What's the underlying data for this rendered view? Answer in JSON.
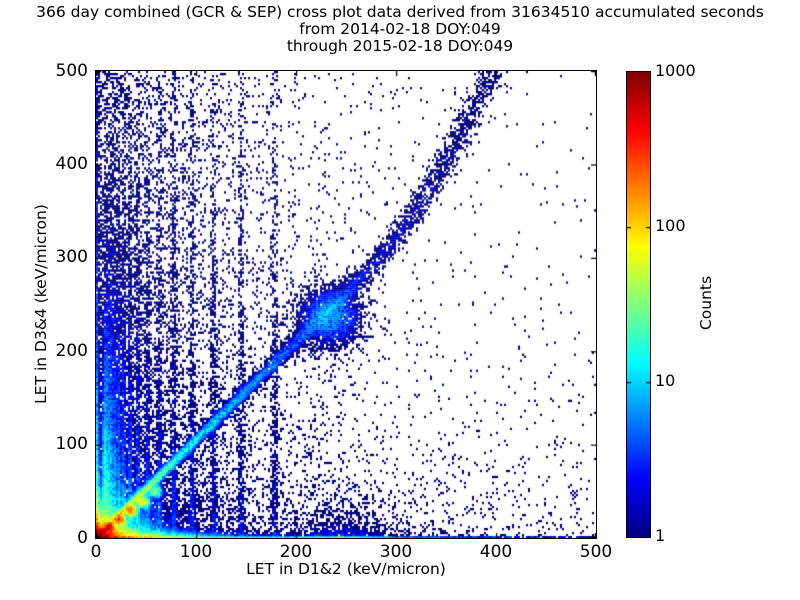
{
  "chart_data": {
    "type": "heatmap",
    "title_lines": [
      "366 day combined (GCR & SEP) cross plot data derived from 31634510 accumulated seconds",
      "from 2014-02-18 DOY:049",
      "through 2015-02-18 DOY:049"
    ],
    "days_combined": 366,
    "source": "GCR & SEP",
    "accumulated_seconds": 31634510,
    "date_range": {
      "from": "2014-02-18 DOY:049",
      "through": "2015-02-18 DOY:049"
    },
    "xlabel": "LET in D1&2 (keV/micron)",
    "ylabel": "LET in D3&4 (keV/micron)",
    "xlim": [
      0,
      500
    ],
    "ylim": [
      0,
      500
    ],
    "xticks": [
      0,
      100,
      200,
      300,
      400,
      500
    ],
    "yticks": [
      0,
      100,
      200,
      300,
      400,
      500
    ],
    "grid": false,
    "background": "#ffffff",
    "colormap": "jet",
    "point_color_min": "#000080",
    "point_color_max": "#800000",
    "colorbar": {
      "label": "Counts",
      "scale": "log",
      "min": 1,
      "max": 1000,
      "ticks": [
        1,
        10,
        100,
        1000
      ]
    },
    "density_model": {
      "seed": 20150218,
      "bins": {
        "cols": 250,
        "rows": 233
      },
      "origin_hotspot": {
        "amp_core": 1400,
        "r_core": 4.5,
        "amp_mid": 120,
        "r_mid": 15,
        "amp_halo": 2.0,
        "r_halo": 45,
        "y_squash": 1.15
      },
      "bottom_band": {
        "amps": [
          900,
          80,
          10,
          1.6
        ],
        "xdecays": [
          22,
          55,
          130,
          500
        ],
        "height": 2.2,
        "height_extra": 2.0,
        "height_xdecay": 70,
        "thin_row_amp": 18,
        "thin_row_xdecay": 180,
        "thin_row_height": 2.4,
        "cyan_strip": {
          "x": 240,
          "sigma": 35,
          "amp": 12
        }
      },
      "left_band": {
        "amps": [
          700,
          60,
          8,
          2
        ],
        "ydecays": [
          12,
          70,
          200,
          600
        ],
        "width": 1.6
      },
      "diagonal_band": {
        "slope": 1.05,
        "x_max": 420,
        "bend_start": 260,
        "bend_coeff": 0.0045,
        "sigma_base": 3,
        "sigma_slope": 0.03,
        "sigma_extra_start": 280,
        "sigma_extra_slope": 0.08,
        "amps": [
          280,
          45,
          7,
          2
        ],
        "xdecays": [
          16,
          55,
          130,
          350
        ]
      },
      "element_peaks": [
        {
          "x": 13,
          "y": 10.5,
          "amp": 350,
          "sigma": 2.6
        },
        {
          "x": 24,
          "y": 19.5,
          "amp": 260,
          "sigma": 2.6
        },
        {
          "x": 35,
          "y": 29.5,
          "amp": 170,
          "sigma": 3.0
        },
        {
          "x": 47,
          "y": 39.0,
          "amp": 80,
          "sigma": 3.2
        },
        {
          "x": 59,
          "y": 50.0,
          "amp": 35,
          "sigma": 3.4
        }
      ],
      "iron_peak": {
        "x": 234,
        "y": 237,
        "amp": 6,
        "sigma": 17
      },
      "bottom_mound": {
        "x": 248,
        "sigma": 40,
        "amp": 2.5,
        "ydecay": 16
      },
      "vertical_streaks": {
        "x_first": 8,
        "x_ratio": 1.23,
        "count": 16,
        "amp_first": 28,
        "amp_decay": 0.28,
        "amp_floor": 1.2,
        "sigma_base": 1.1,
        "sigma_step": 0.06,
        "ylen_base": 70,
        "ylen_step": 14
      },
      "diffuse": [
        {
          "amp": 0.55,
          "xdecay": 55,
          "ydecay": 260
        },
        {
          "amp": 0.5,
          "xdecay": 260,
          "ydecay": 60
        },
        {
          "amp": 0.15,
          "xdecay": 180,
          "ydecay": 350
        },
        {
          "amp": 0.025,
          "xdecay": 400,
          "ydecay": 400
        }
      ],
      "upper_fan": {
        "amp": 0.3,
        "xdecay": 90,
        "slope": 1.2,
        "below_decay": 60
      }
    }
  }
}
